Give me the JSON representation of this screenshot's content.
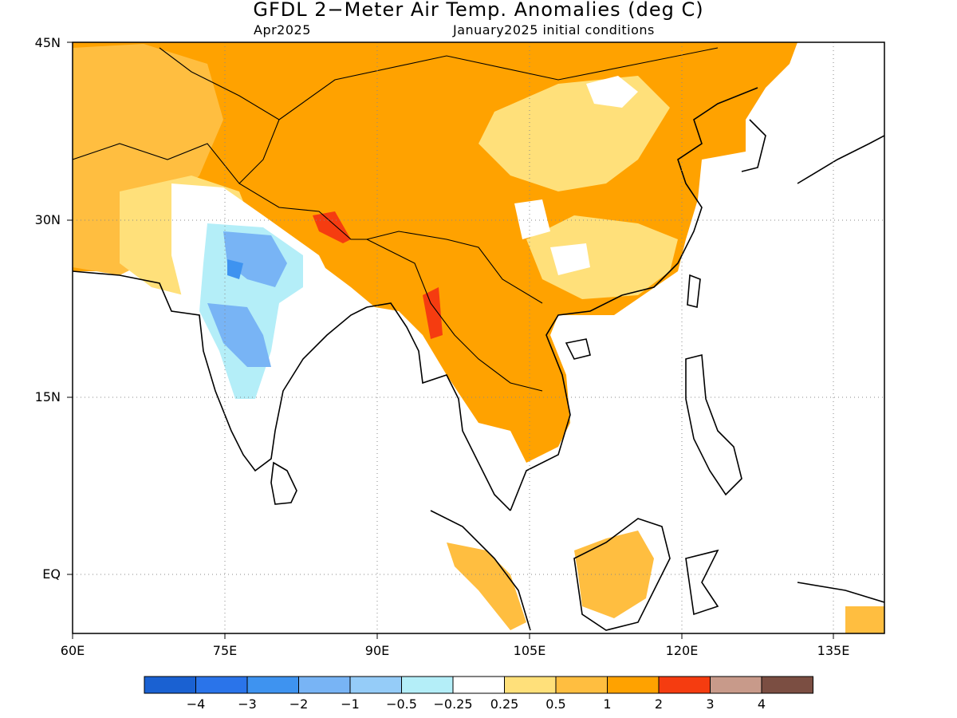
{
  "title": "GFDL 2−Meter Air Temp. Anomalies (deg C)",
  "subtitle_left": "Apr2025",
  "subtitle_right": "January2025 initial conditions",
  "lat_labels": [
    "45N",
    "30N",
    "15N",
    "EQ"
  ],
  "lon_labels": [
    "60E",
    "75E",
    "90E",
    "105E",
    "120E",
    "135E"
  ],
  "map_extent": {
    "lon": [
      60,
      140
    ],
    "lat": [
      -5,
      45
    ]
  },
  "colorbar": {
    "colors": [
      "#1a61d2",
      "#2a74ea",
      "#3e93f0",
      "#78b4f5",
      "#95ccf8",
      "#b4eef8",
      "#ffffff",
      "#ffe07a",
      "#ffbe40",
      "#ffa200",
      "#f53c10",
      "#c89a8a",
      "#7b4e42"
    ],
    "labels": [
      "−4",
      "−3",
      "−2",
      "−1",
      "−0.5",
      "−0.25",
      "0.25",
      "0.5",
      "1",
      "2",
      "3",
      "4"
    ]
  }
}
